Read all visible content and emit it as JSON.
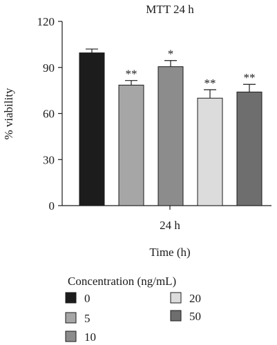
{
  "chart_data": {
    "type": "bar",
    "title": "MTT 24 h",
    "ylabel": "% viability",
    "xlabel": "Time (h)",
    "group_label": "24 h",
    "ylim": [
      0,
      120
    ],
    "yticks": [
      0,
      30,
      60,
      90,
      120
    ],
    "grid": false,
    "legend": {
      "title": "Concentration (ng/mL)",
      "placement": "bottom"
    },
    "series": [
      {
        "name": "0",
        "value": 99.5,
        "error": 2.5,
        "significance": "",
        "color": "#1c1c1c"
      },
      {
        "name": "5",
        "value": 78.5,
        "error": 3.0,
        "significance": "**",
        "color": "#a6a6a6"
      },
      {
        "name": "10",
        "value": 90.5,
        "error": 4.0,
        "significance": "*",
        "color": "#8c8c8c"
      },
      {
        "name": "20",
        "value": 70.0,
        "error": 5.5,
        "significance": "**",
        "color": "#dcdcdc"
      },
      {
        "name": "50",
        "value": 74.0,
        "error": 5.0,
        "significance": "**",
        "color": "#6e6e6e"
      }
    ]
  }
}
